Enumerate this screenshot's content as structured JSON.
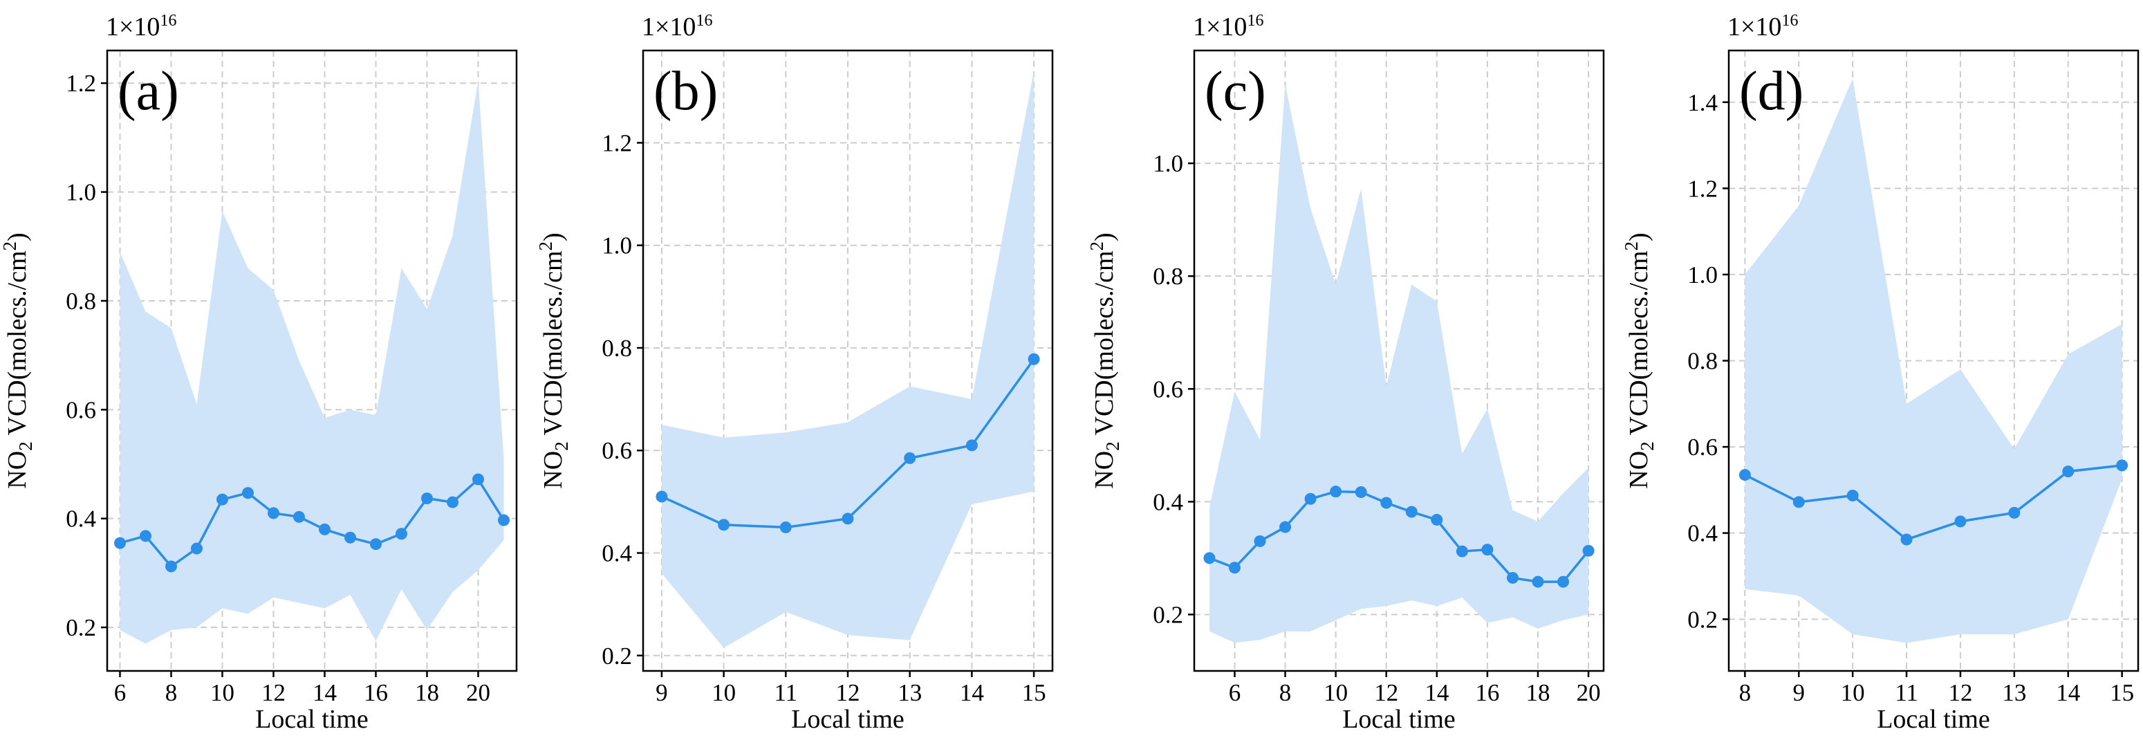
{
  "colors": {
    "line": "#2b8fe8",
    "band": "#cfe3f9",
    "grid": "#cccccc",
    "axis": "#000000"
  },
  "chart_data": [
    {
      "type": "line",
      "panel_label": "(a)",
      "scale_label": "1×10",
      "scale_exponent": "16",
      "xlabel": "Local time",
      "ylabel": "NO2 VCD(molecs./cm2)",
      "xlim": [
        5.5,
        21.5
      ],
      "ylim": [
        0.12,
        1.26
      ],
      "xticks": [
        6,
        8,
        10,
        12,
        14,
        16,
        18,
        20
      ],
      "xtick_labels": [
        "6",
        "8",
        "10",
        "12",
        "14",
        "16",
        "18",
        "20"
      ],
      "yticks": [
        0.2,
        0.4,
        0.6,
        0.8,
        1.0,
        1.2
      ],
      "ytick_labels": [
        "0.2",
        "0.4",
        "0.6",
        "0.8",
        "1.0",
        "1.2"
      ],
      "grid": true,
      "x": [
        6,
        7,
        8,
        9,
        10,
        11,
        12,
        13,
        14,
        15,
        16,
        17,
        18,
        19,
        20,
        21
      ],
      "mean": [
        0.355,
        0.368,
        0.312,
        0.345,
        0.435,
        0.447,
        0.41,
        0.403,
        0.38,
        0.365,
        0.353,
        0.372,
        0.437,
        0.43,
        0.472,
        0.397
      ],
      "upper": [
        0.89,
        0.78,
        0.75,
        0.61,
        0.965,
        0.86,
        0.82,
        0.69,
        0.585,
        0.6,
        0.59,
        0.86,
        0.785,
        0.92,
        1.205,
        0.51
      ],
      "lower": [
        0.195,
        0.17,
        0.195,
        0.2,
        0.235,
        0.225,
        0.255,
        0.245,
        0.235,
        0.26,
        0.175,
        0.27,
        0.195,
        0.265,
        0.305,
        0.36
      ]
    },
    {
      "type": "line",
      "panel_label": "(b)",
      "scale_label": "1×10",
      "scale_exponent": "16",
      "xlabel": "Local time",
      "ylabel": "NO2 VCD(molecs./cm2)",
      "xlim": [
        8.7,
        15.3
      ],
      "ylim": [
        0.17,
        1.38
      ],
      "xticks": [
        9,
        10,
        11,
        12,
        13,
        14,
        15
      ],
      "xtick_labels": [
        "9",
        "10",
        "11",
        "12",
        "13",
        "14",
        "15"
      ],
      "yticks": [
        0.2,
        0.4,
        0.6,
        0.8,
        1.0,
        1.2
      ],
      "ytick_labels": [
        "0.2",
        "0.4",
        "0.6",
        "0.8",
        "1.0",
        "1.2"
      ],
      "grid": true,
      "x": [
        9,
        10,
        11,
        12,
        13,
        14,
        15
      ],
      "mean": [
        0.51,
        0.455,
        0.45,
        0.467,
        0.585,
        0.61,
        0.778
      ],
      "upper": [
        0.65,
        0.625,
        0.635,
        0.655,
        0.725,
        0.7,
        1.34
      ],
      "lower": [
        0.36,
        0.215,
        0.285,
        0.24,
        0.23,
        0.495,
        0.52
      ]
    },
    {
      "type": "line",
      "panel_label": "(c)",
      "scale_label": "1×10",
      "scale_exponent": "16",
      "xlabel": "Local time",
      "ylabel": "NO2 VCD(molecs./cm2)",
      "xlim": [
        4.4,
        20.6
      ],
      "ylim": [
        0.1,
        1.2
      ],
      "xticks": [
        6,
        8,
        10,
        12,
        14,
        16,
        18,
        20
      ],
      "xtick_labels": [
        "6",
        "8",
        "10",
        "12",
        "14",
        "16",
        "18",
        "20"
      ],
      "yticks": [
        0.2,
        0.4,
        0.6,
        0.8,
        1.0
      ],
      "ytick_labels": [
        "0.2",
        "0.4",
        "0.6",
        "0.8",
        "1.0"
      ],
      "grid": true,
      "x": [
        5,
        6,
        7,
        8,
        9,
        10,
        11,
        12,
        13,
        14,
        15,
        16,
        17,
        18,
        19,
        20
      ],
      "mean": [
        0.3,
        0.283,
        0.33,
        0.355,
        0.405,
        0.418,
        0.417,
        0.398,
        0.382,
        0.368,
        0.312,
        0.315,
        0.265,
        0.258,
        0.258,
        0.313
      ],
      "upper": [
        0.39,
        0.595,
        0.51,
        1.14,
        0.92,
        0.785,
        0.955,
        0.605,
        0.785,
        0.755,
        0.485,
        0.565,
        0.385,
        0.365,
        0.415,
        0.46
      ],
      "lower": [
        0.17,
        0.15,
        0.155,
        0.17,
        0.17,
        0.19,
        0.21,
        0.215,
        0.225,
        0.215,
        0.23,
        0.185,
        0.195,
        0.175,
        0.19,
        0.2
      ]
    },
    {
      "type": "line",
      "panel_label": "(d)",
      "scale_label": "1×10",
      "scale_exponent": "16",
      "xlabel": "Local time",
      "ylabel": "NO2 VCD(molecs./cm2)",
      "xlim": [
        7.7,
        15.3
      ],
      "ylim": [
        0.08,
        1.52
      ],
      "xticks": [
        8,
        9,
        10,
        11,
        12,
        13,
        14,
        15
      ],
      "xtick_labels": [
        "8",
        "9",
        "10",
        "11",
        "12",
        "13",
        "14",
        "15"
      ],
      "yticks": [
        0.2,
        0.4,
        0.6,
        0.8,
        1.0,
        1.2,
        1.4
      ],
      "ytick_labels": [
        "0.2",
        "0.4",
        "0.6",
        "0.8",
        "1.0",
        "1.2",
        "1.4"
      ],
      "grid": true,
      "x": [
        8,
        9,
        10,
        11,
        12,
        13,
        14,
        15
      ],
      "mean": [
        0.535,
        0.472,
        0.487,
        0.385,
        0.427,
        0.447,
        0.543,
        0.557
      ],
      "upper": [
        1.0,
        1.16,
        1.455,
        0.7,
        0.78,
        0.595,
        0.815,
        0.885
      ],
      "lower": [
        0.27,
        0.255,
        0.165,
        0.145,
        0.165,
        0.165,
        0.2,
        0.525
      ]
    }
  ]
}
